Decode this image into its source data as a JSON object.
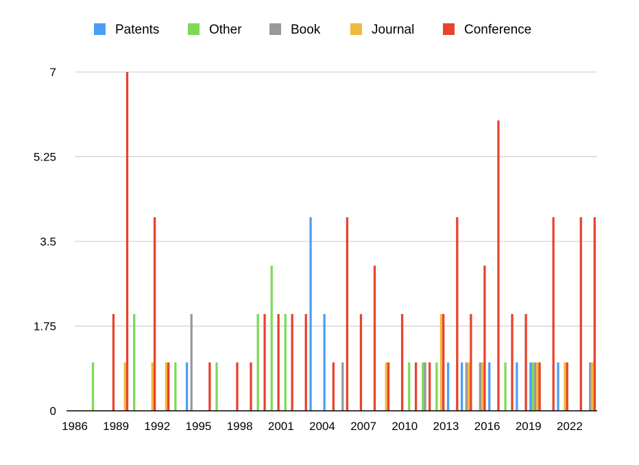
{
  "chart_data": {
    "type": "bar",
    "title": "",
    "xlabel": "",
    "ylabel": "",
    "ylim": [
      0,
      7
    ],
    "grid": true,
    "legend_position": "top",
    "x": [
      1986,
      1987,
      1988,
      1989,
      1990,
      1991,
      1992,
      1993,
      1994,
      1995,
      1996,
      1997,
      1998,
      1999,
      2000,
      2001,
      2002,
      2003,
      2004,
      2005,
      2006,
      2007,
      2008,
      2009,
      2010,
      2011,
      2012,
      2013,
      2014,
      2015,
      2016,
      2017,
      2018,
      2019,
      2020,
      2021,
      2022,
      2023
    ],
    "x_ticks": [
      "1986",
      "1989",
      "1992",
      "1995",
      "1998",
      "2001",
      "2004",
      "2007",
      "2010",
      "2013",
      "2016",
      "2019",
      "2022"
    ],
    "y_ticks": [
      "0",
      "1.75",
      "3.5",
      "5.25",
      "7"
    ],
    "series": [
      {
        "name": "Patents",
        "color": "#4a9ff5",
        "values": [
          0,
          0,
          0,
          0,
          0,
          0,
          0,
          0,
          1,
          0,
          0,
          0,
          0,
          0,
          0,
          0,
          0,
          4,
          2,
          0,
          0,
          0,
          0,
          0,
          0,
          0,
          0,
          1,
          1,
          0,
          1,
          0,
          1,
          1,
          0,
          1,
          0,
          0
        ]
      },
      {
        "name": "Other",
        "color": "#7ed957",
        "values": [
          0,
          1,
          0,
          0,
          2,
          0,
          0,
          1,
          0,
          0,
          1,
          0,
          0,
          2,
          3,
          2,
          0,
          0,
          0,
          0,
          0,
          0,
          0,
          0,
          1,
          1,
          1,
          0,
          0,
          0,
          0,
          1,
          0,
          1,
          0,
          0,
          0,
          0
        ]
      },
      {
        "name": "Book",
        "color": "#999999",
        "values": [
          0,
          0,
          0,
          0,
          0,
          0,
          0,
          0,
          2,
          0,
          0,
          0,
          0,
          0,
          0,
          0,
          0,
          0,
          0,
          1,
          0,
          0,
          0,
          0,
          0,
          1,
          0,
          0,
          1,
          1,
          0,
          0,
          0,
          1,
          0,
          0,
          0,
          1
        ]
      },
      {
        "name": "Journal",
        "color": "#f0b93b",
        "values": [
          0,
          0,
          0,
          1,
          0,
          1,
          1,
          0,
          0,
          0,
          0,
          0,
          0,
          0,
          0,
          0,
          0,
          0,
          0,
          0,
          0,
          0,
          1,
          0,
          0,
          0,
          2,
          0,
          1,
          1,
          0,
          0,
          0,
          1,
          0,
          1,
          0,
          1
        ]
      },
      {
        "name": "Conference",
        "color": "#e8432b",
        "values": [
          0,
          0,
          2,
          7,
          0,
          4,
          1,
          0,
          0,
          1,
          0,
          1,
          1,
          2,
          2,
          2,
          2,
          0,
          1,
          4,
          2,
          3,
          1,
          2,
          1,
          1,
          2,
          4,
          2,
          3,
          6,
          2,
          2,
          1,
          4,
          1,
          4,
          4
        ]
      }
    ]
  }
}
